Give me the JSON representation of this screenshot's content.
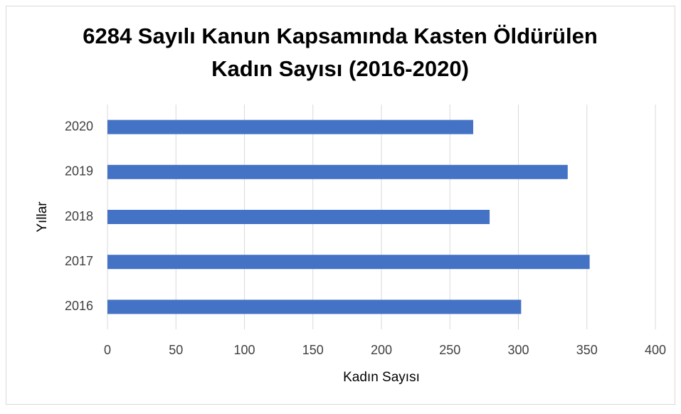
{
  "chart_data": {
    "type": "bar",
    "orientation": "horizontal",
    "title": [
      "6284 Sayılı Kanun Kapsamında Kasten Öldürülen",
      "Kadın Sayısı (2016-2020)"
    ],
    "xlabel": "Kadın Sayısı",
    "ylabel": "Yıllar",
    "categories": [
      "2016",
      "2017",
      "2018",
      "2019",
      "2020"
    ],
    "values": [
      302,
      352,
      279,
      336,
      267
    ],
    "color": "#4472c4",
    "xlim": [
      0,
      400
    ],
    "xticks": [
      0,
      50,
      100,
      150,
      200,
      250,
      300,
      350,
      400
    ],
    "grid": true
  }
}
